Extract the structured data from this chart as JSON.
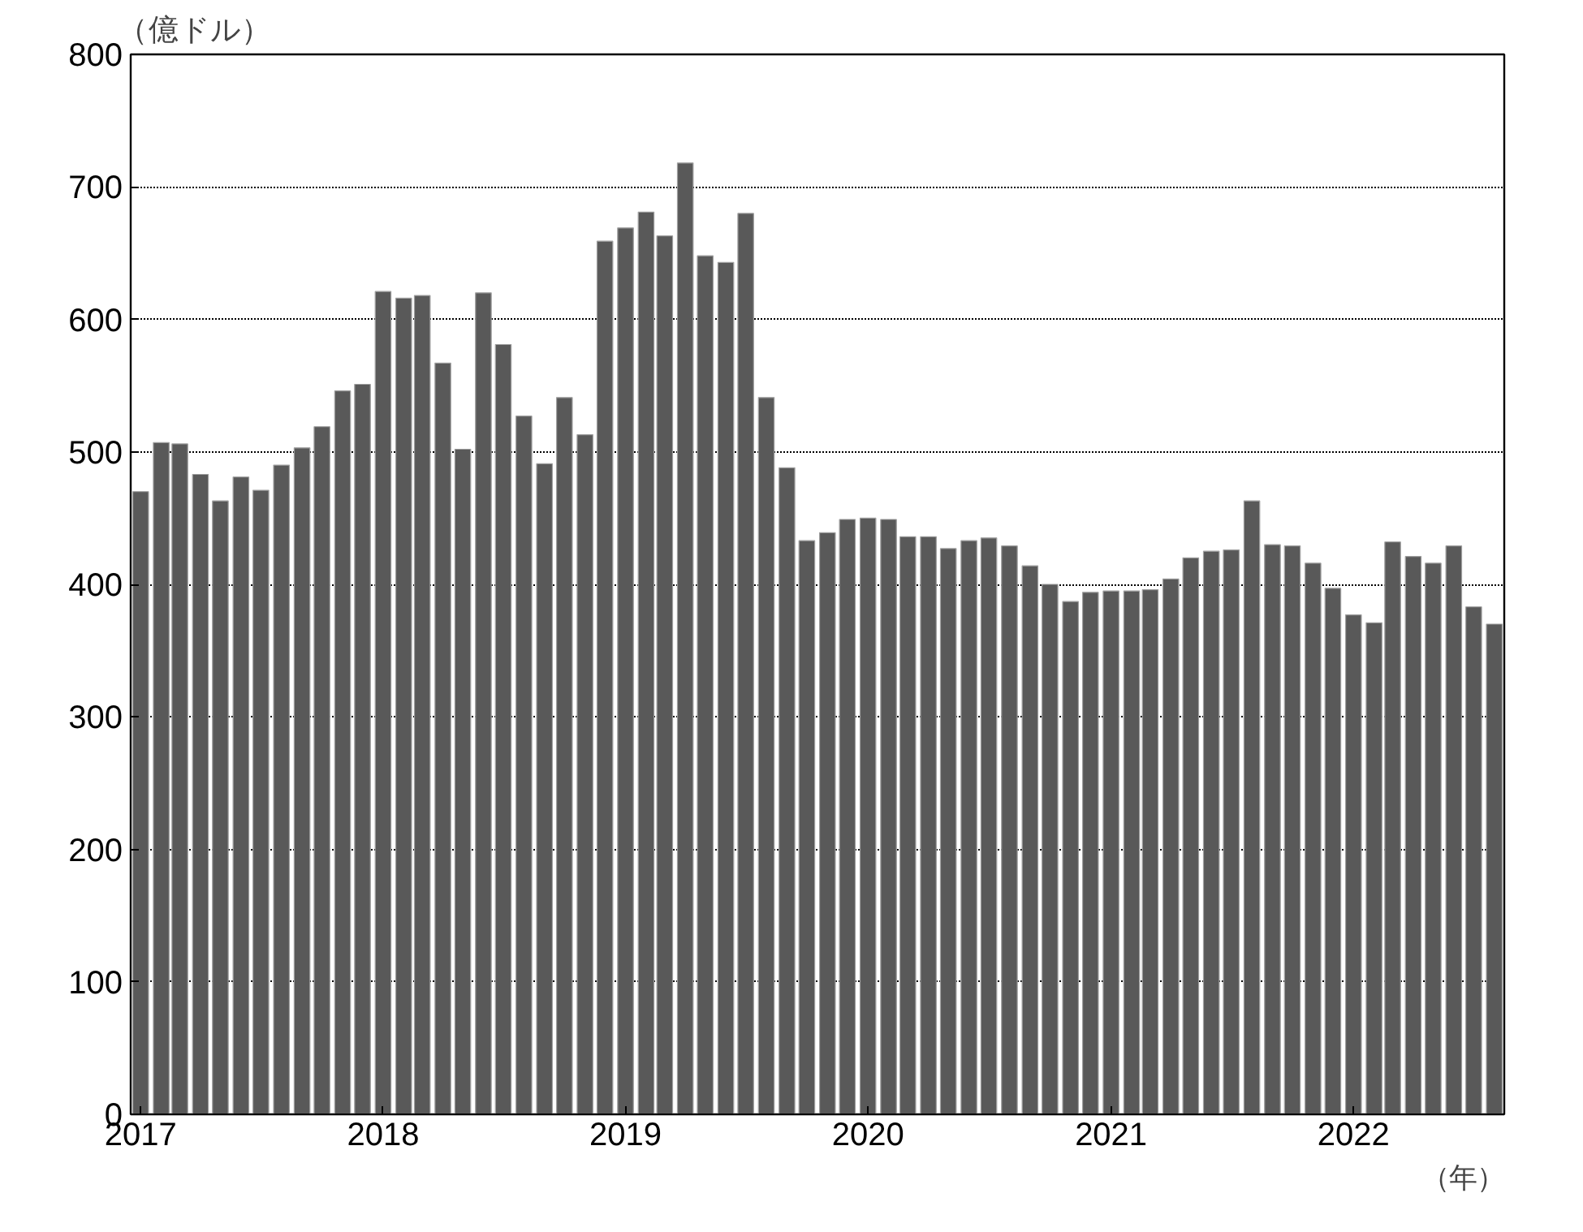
{
  "chart_data": {
    "type": "bar",
    "ylabel": "（億ドル）",
    "xlabel": "（年）",
    "x": [
      "2017-01",
      "2017-02",
      "2017-03",
      "2017-04",
      "2017-05",
      "2017-06",
      "2017-07",
      "2017-08",
      "2017-09",
      "2017-10",
      "2017-11",
      "2017-12",
      "2018-01",
      "2018-02",
      "2018-03",
      "2018-04",
      "2018-05",
      "2018-06",
      "2018-07",
      "2018-08",
      "2018-09",
      "2018-10",
      "2018-11",
      "2018-12",
      "2019-01",
      "2019-02",
      "2019-03",
      "2019-04",
      "2019-05",
      "2019-06",
      "2019-07",
      "2019-08",
      "2019-09",
      "2019-10",
      "2019-11",
      "2019-12",
      "2020-01",
      "2020-02",
      "2020-03",
      "2020-04",
      "2020-05",
      "2020-06",
      "2020-07",
      "2020-08",
      "2020-09",
      "2020-10",
      "2020-11",
      "2020-12",
      "2021-01",
      "2021-02",
      "2021-03",
      "2021-04",
      "2021-05",
      "2021-06",
      "2021-07",
      "2021-08",
      "2021-09",
      "2021-10",
      "2021-11",
      "2021-12",
      "2022-01",
      "2022-02",
      "2022-03",
      "2022-04",
      "2022-05",
      "2022-06",
      "2022-07",
      "2022-08"
    ],
    "values": [
      470,
      507,
      506,
      483,
      463,
      481,
      471,
      490,
      503,
      519,
      546,
      551,
      621,
      616,
      618,
      567,
      502,
      620,
      581,
      527,
      491,
      541,
      513,
      659,
      669,
      681,
      663,
      718,
      648,
      643,
      680,
      541,
      488,
      433,
      439,
      449,
      450,
      449,
      436,
      436,
      427,
      433,
      435,
      429,
      414,
      400,
      387,
      394,
      395,
      395,
      396,
      404,
      420,
      425,
      426,
      463,
      430,
      429,
      416,
      397,
      377,
      371,
      432,
      421,
      416,
      429,
      383,
      370
    ],
    "color": "#595959",
    "ylim": [
      0,
      800
    ],
    "yticks": [
      0,
      100,
      200,
      300,
      400,
      500,
      600,
      700,
      800
    ],
    "xlim": [
      "2016-12-17",
      "2022-08-16"
    ],
    "xticks": [
      {
        "value": "2017-01",
        "label": "2017"
      },
      {
        "value": "2018-01",
        "label": "2018"
      },
      {
        "value": "2019-01",
        "label": "2019"
      },
      {
        "value": "2020-01",
        "label": "2020"
      },
      {
        "value": "2021-01",
        "label": "2021"
      },
      {
        "value": "2022-01",
        "label": "2022"
      }
    ],
    "grid": "y"
  }
}
